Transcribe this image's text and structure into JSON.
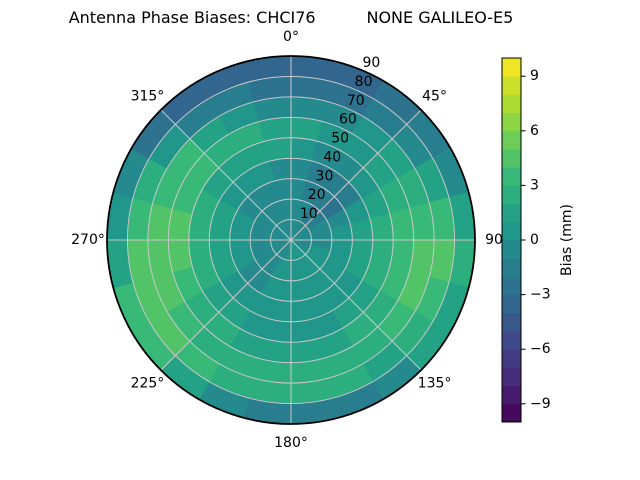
{
  "chart_data": {
    "type": "heatmap",
    "projection": "polar",
    "title": "Antenna Phase Biases: CHCI76          NONE GALILEO-E5",
    "angle_tick_labels": [
      {
        "deg": 0,
        "label": "0°"
      },
      {
        "deg": 45,
        "label": "45°"
      },
      {
        "deg": 90,
        "label": "90"
      },
      {
        "deg": 135,
        "label": "135°"
      },
      {
        "deg": 180,
        "label": "180°"
      },
      {
        "deg": 225,
        "label": "225°"
      },
      {
        "deg": 270,
        "label": "270°"
      },
      {
        "deg": 315,
        "label": "315°"
      }
    ],
    "radial_tick_values": [
      10,
      20,
      30,
      40,
      50,
      60,
      70,
      80,
      90
    ],
    "radial_axis_max": 90,
    "radial_label_angle_deg": 22.5,
    "azimuth_bin_deg": 15,
    "zenith_ring_step": 10,
    "values_mm_rows_by_zenith_ring": [
      [
        -0.5,
        -0.5,
        -0.5,
        -0.5,
        -0.5,
        -0.5,
        -0.5,
        -0.5,
        -0.5,
        0.5,
        0.5,
        0.5,
        0.5,
        -0.5,
        -0.5,
        -0.5,
        -0.5,
        -0.5,
        -0.5,
        -0.5,
        -0.5,
        -0.5,
        -0.5,
        -0.5
      ],
      [
        -0.5,
        -0.5,
        -1.5,
        -1.5,
        -0.5,
        -0.5,
        -0.5,
        0.5,
        0.5,
        0.5,
        0.5,
        0.5,
        0.5,
        0.5,
        -0.5,
        -0.5,
        -0.5,
        -0.5,
        -0.5,
        -0.5,
        -0.5,
        -0.5,
        -0.5,
        -0.5
      ],
      [
        -0.5,
        -1.5,
        -1.5,
        -2.5,
        -0.5,
        0.5,
        0.5,
        0.5,
        0.5,
        0.5,
        0.5,
        0.5,
        0.5,
        0.5,
        -0.5,
        -0.5,
        0.5,
        0.5,
        0.5,
        0.5,
        -0.5,
        -0.5,
        -0.5,
        -0.5
      ],
      [
        -0.5,
        -1.5,
        -1.5,
        -1.5,
        0.5,
        1.5,
        1.5,
        1.5,
        0.5,
        0.5,
        0.5,
        0.5,
        0.5,
        0.5,
        0.5,
        0.5,
        1.5,
        1.5,
        1.5,
        1.5,
        0.5,
        0.5,
        0.5,
        -0.5
      ],
      [
        0.5,
        -0.5,
        -0.5,
        0.5,
        1.5,
        2.5,
        2.5,
        2.5,
        1.5,
        1.5,
        0.5,
        0.5,
        0.5,
        0.5,
        1.5,
        1.5,
        2.5,
        2.5,
        2.5,
        2.5,
        1.5,
        1.5,
        1.5,
        1.5
      ],
      [
        1.5,
        0.5,
        0.5,
        1.5,
        2.5,
        3.5,
        3.5,
        3.5,
        2.5,
        2.5,
        1.5,
        1.5,
        1.5,
        1.5,
        2.5,
        2.5,
        3.5,
        4.5,
        4.5,
        3.5,
        3.5,
        2.5,
        2.5,
        1.5
      ],
      [
        -0.5,
        -0.5,
        0.5,
        1.5,
        2.5,
        3.5,
        4.5,
        4.5,
        3.5,
        2.5,
        2.5,
        2.5,
        2.5,
        2.5,
        2.5,
        3.5,
        4.5,
        4.5,
        4.5,
        3.5,
        3.5,
        1.5,
        0.5,
        -0.5
      ],
      [
        -2.5,
        -2.5,
        -1.5,
        -0.5,
        1.5,
        3.5,
        4.5,
        3.5,
        2.5,
        1.5,
        2.5,
        2.5,
        2.5,
        2.5,
        3.5,
        4.5,
        4.5,
        4.5,
        3.5,
        2.5,
        0.5,
        -1.5,
        -1.5,
        -2.5
      ],
      [
        -3.5,
        -3.5,
        -2.5,
        -1.5,
        -0.5,
        1.5,
        2.5,
        1.5,
        1.5,
        -0.5,
        -1.5,
        -1.5,
        -1.5,
        -0.5,
        1.5,
        3.5,
        3.5,
        1.5,
        0.5,
        -0.5,
        -2.5,
        -3.5,
        -3.5,
        -3.5
      ]
    ],
    "colorbar": {
      "label": "Bias (mm)",
      "range": [
        -10,
        10
      ],
      "band_size": 1,
      "tick_values": [
        9,
        6,
        3,
        0,
        -3,
        -6,
        -9
      ],
      "tick_labels": [
        "9",
        "6",
        "3",
        "0",
        "−3",
        "−6",
        "−9"
      ],
      "colors": [
        "#450a5c",
        "#471b6c",
        "#472c7a",
        "#423b82",
        "#3e4a89",
        "#38588b",
        "#32668e",
        "#2d728e",
        "#287e8e",
        "#248a8d",
        "#21968a",
        "#23a286",
        "#2dae7f",
        "#39b977",
        "#53c368",
        "#6ccd59",
        "#8cd545",
        "#acdc31",
        "#cce129",
        "#ede526"
      ]
    },
    "grid_color": "#c9c9c9",
    "outline_color": "#000000",
    "text_color": "#000000",
    "background": "#ffffff"
  }
}
